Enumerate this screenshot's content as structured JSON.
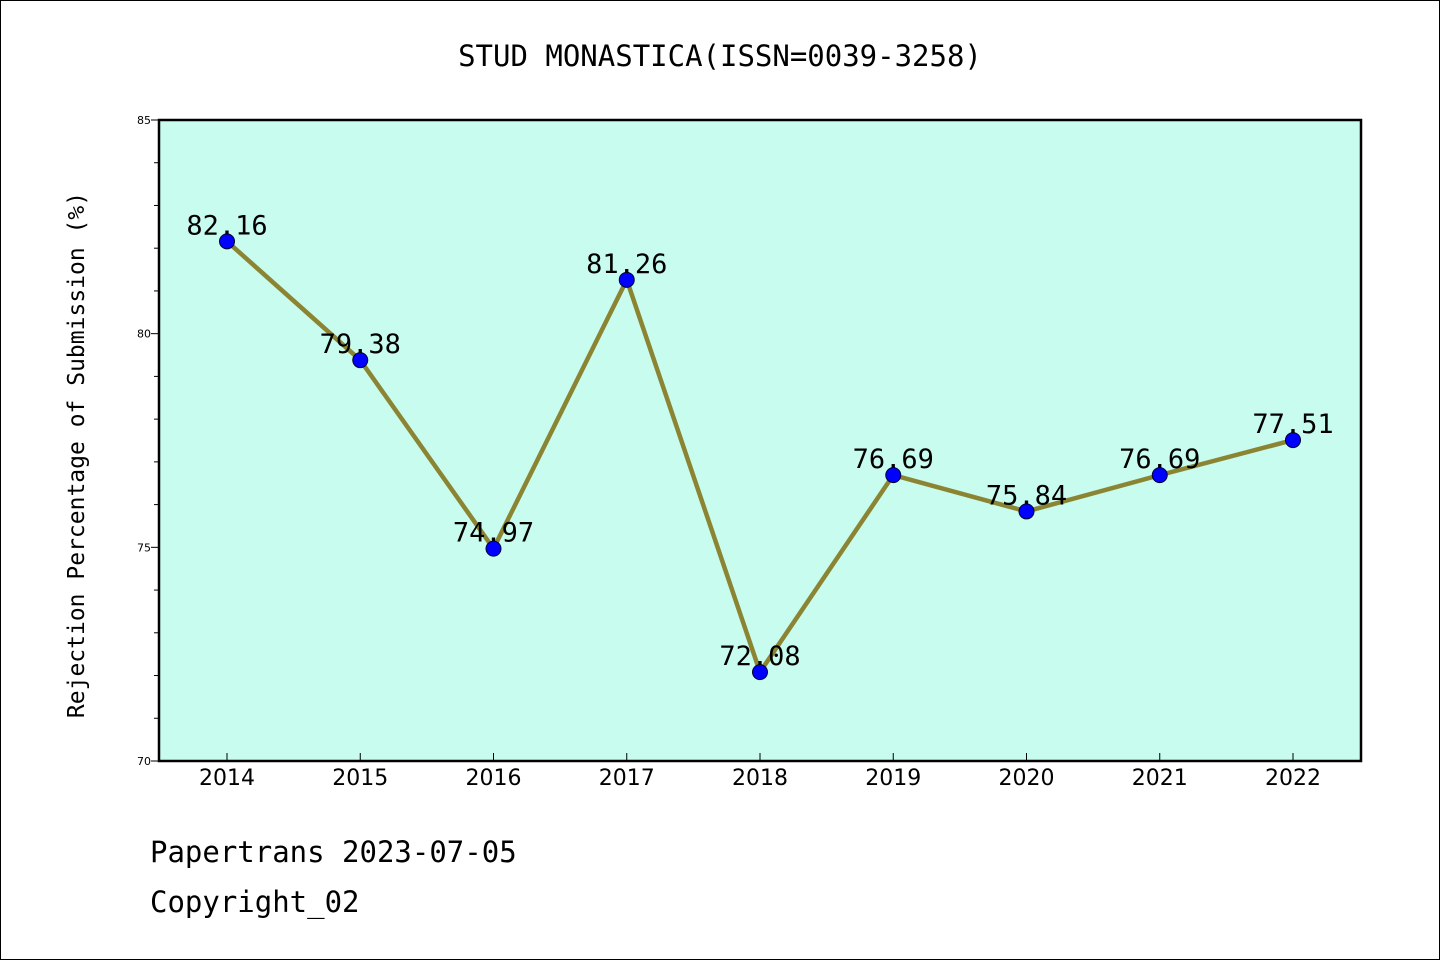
{
  "chart_data": {
    "type": "line",
    "title": "STUD MONASTICA(ISSN=0039-3258)",
    "xlabel": "",
    "ylabel": "Rejection Percentage of Submission (%)",
    "categories": [
      "2014",
      "2015",
      "2016",
      "2017",
      "2018",
      "2019",
      "2020",
      "2021",
      "2022"
    ],
    "series": [
      {
        "values": [
          82.16,
          79.38,
          74.97,
          81.26,
          72.08,
          76.69,
          75.84,
          76.69,
          77.51
        ]
      }
    ],
    "data_labels": [
      "82.16",
      "79.38",
      "74.97",
      "81.26",
      "72.08",
      "76.69",
      "75.84",
      "76.69",
      "77.51"
    ],
    "ylim": [
      70,
      85
    ],
    "yticks": [
      "70",
      "75",
      "80",
      "85"
    ],
    "grid": false,
    "colors": {
      "plot_background": "#c8fcee",
      "line": "#8b8533",
      "marker": "#0000ff"
    }
  },
  "footer": {
    "source": "Papertrans 2023-07-05",
    "copyright": "Copyright_02"
  }
}
